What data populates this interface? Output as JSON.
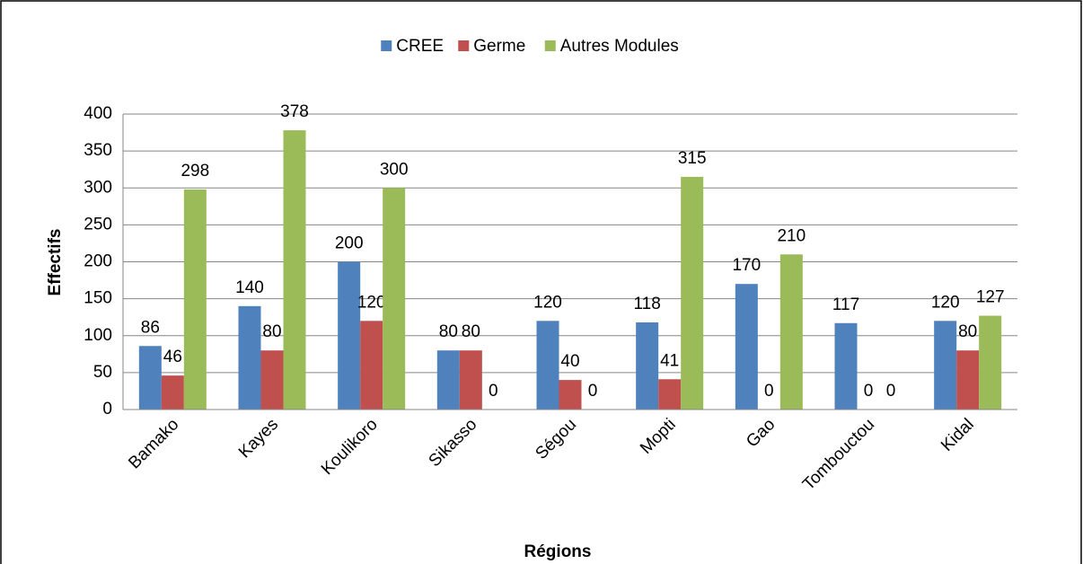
{
  "chart_data": {
    "type": "bar",
    "categories": [
      "Bamako",
      "Kayes",
      "Koulikoro",
      "Sikasso",
      "Ségou",
      "Mopti",
      "Gao",
      "Tombouctou",
      "Kidal"
    ],
    "series": [
      {
        "name": "CREE",
        "color": "#4f81bd",
        "values": [
          86,
          140,
          200,
          80,
          120,
          118,
          170,
          117,
          120
        ]
      },
      {
        "name": "Germe",
        "color": "#c0504d",
        "values": [
          46,
          80,
          120,
          80,
          40,
          41,
          0,
          0,
          80
        ]
      },
      {
        "name": "Autres Modules",
        "color": "#9bbb59",
        "values": [
          298,
          378,
          300,
          0,
          0,
          315,
          210,
          0,
          127
        ]
      }
    ],
    "ylim": [
      0,
      400
    ],
    "yticks": [
      0,
      50,
      100,
      150,
      200,
      250,
      300,
      350,
      400
    ],
    "y_label": "Effectifs",
    "x_label": "Régions",
    "grid": true,
    "legend": "top"
  }
}
